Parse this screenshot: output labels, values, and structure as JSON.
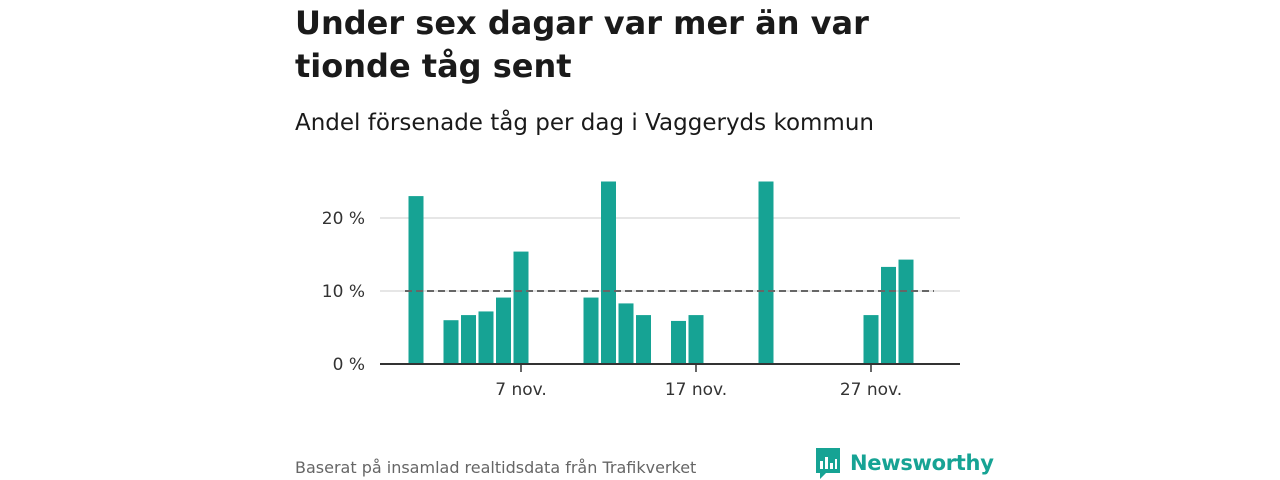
{
  "header": {
    "title": "Under sex dagar var mer än var tionde tåg sent",
    "subtitle": "Andel försenade tåg per dag i Vaggeryds kommun"
  },
  "footer": {
    "source": "Baserat på insamlad realtidsdata från Trafikverket",
    "logo_text": "Newsworthy"
  },
  "colors": {
    "bar": "#16a394",
    "reference_line": "#666666",
    "grid": "#dddddd",
    "axis": "#333333",
    "brand": "#16a394"
  },
  "chart_data": {
    "type": "bar",
    "x_unit": "day of November",
    "x": [
      1,
      2,
      3,
      4,
      5,
      6,
      7,
      8,
      9,
      10,
      11,
      12,
      13,
      14,
      15,
      16,
      17,
      18,
      19,
      20,
      21,
      22,
      23,
      24,
      25,
      26,
      27,
      28,
      29,
      30
    ],
    "values": [
      23,
      0,
      6,
      6.7,
      7.2,
      9.1,
      15.4,
      0,
      0,
      0,
      9.1,
      25,
      8.3,
      6.7,
      0,
      5.9,
      6.7,
      0,
      0,
      0,
      25,
      0,
      0,
      0,
      0,
      0,
      6.7,
      13.3,
      14.3,
      0
    ],
    "ylim": [
      0,
      25
    ],
    "y_ticks": [
      0,
      10,
      20
    ],
    "y_tick_labels": [
      "0 %",
      "10 %",
      "20 %"
    ],
    "x_ticks": [
      7,
      17,
      27
    ],
    "x_tick_labels": [
      "7 nov.",
      "17 nov.",
      "27 nov."
    ],
    "reference_line": {
      "value": 10,
      "style": "dashed"
    },
    "grid": true,
    "xlabel": "",
    "ylabel": ""
  }
}
